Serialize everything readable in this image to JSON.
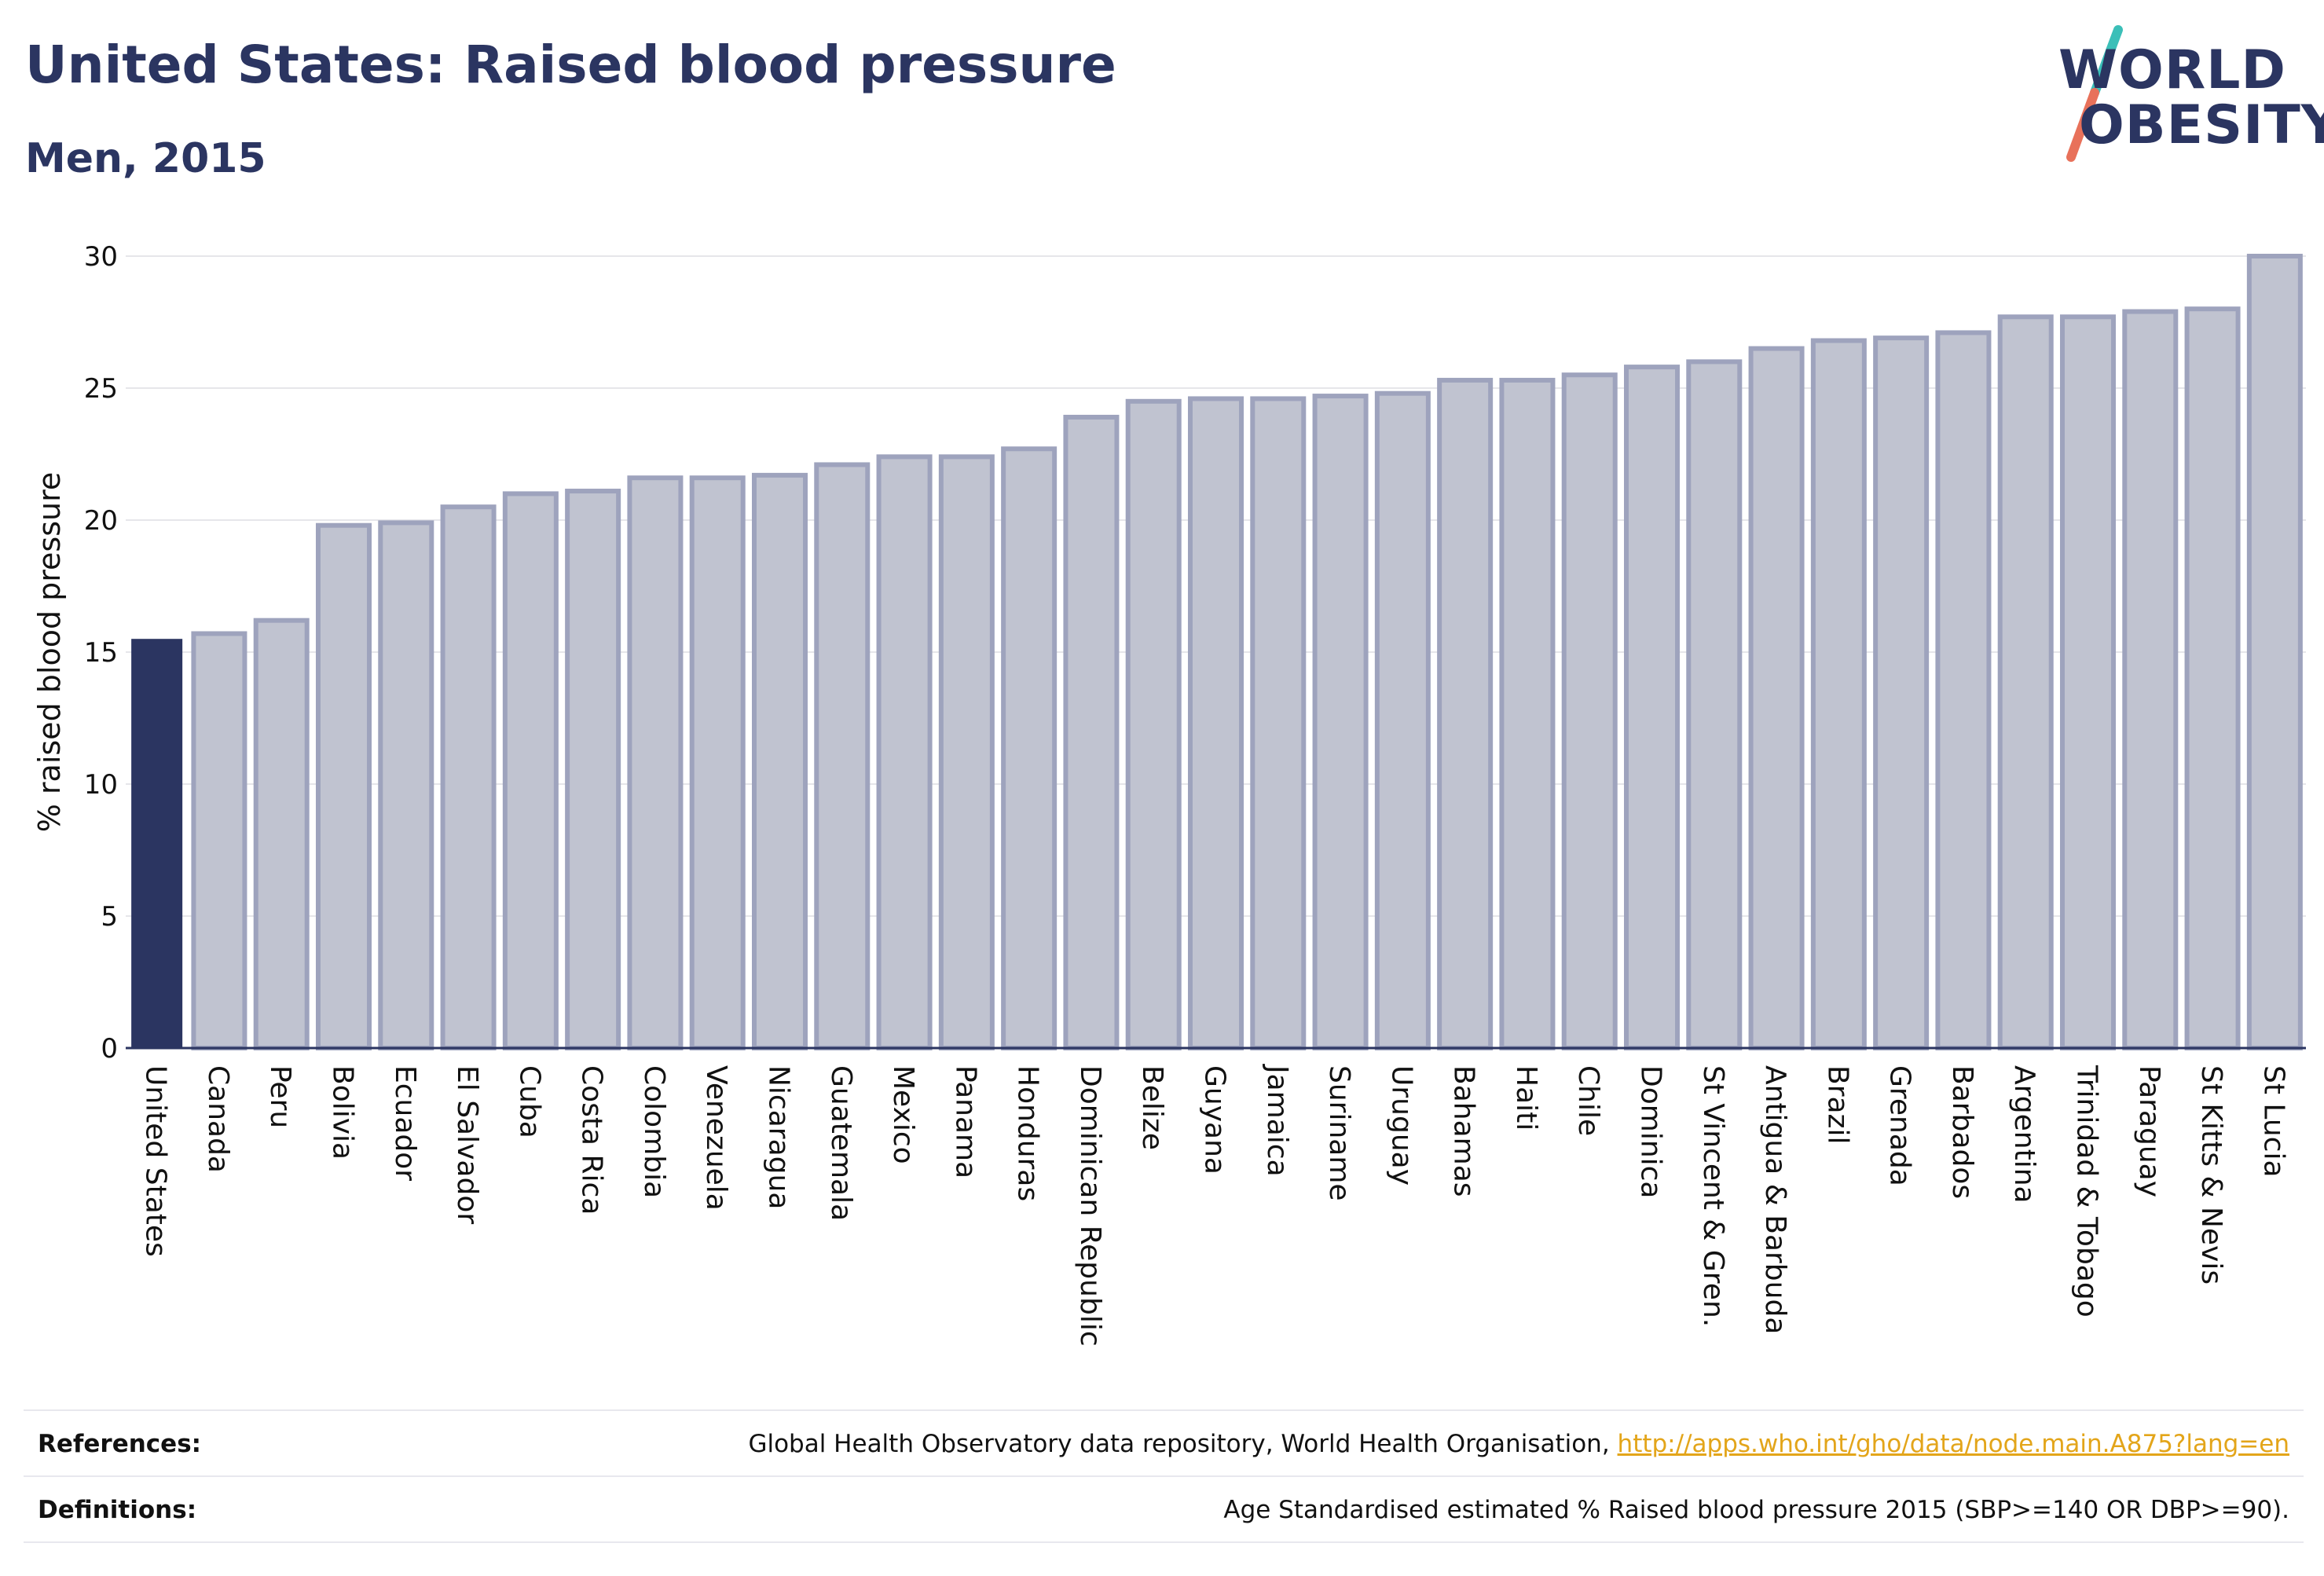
{
  "header": {
    "title": "United States: Raised blood pressure",
    "subtitle": "Men, 2015"
  },
  "logo": {
    "line1": "WORLD",
    "line2": "OBESITY",
    "colors": {
      "text": "#2b3561",
      "slash_top": "#3bbfb8",
      "slash_bottom": "#e8715a"
    }
  },
  "colors": {
    "highlight_bar": "#2b3561",
    "bar_fill": "#c0c3d0",
    "bar_stroke": "#9ea3bd",
    "grid": "#e6e6ea",
    "axis": "#2b3561",
    "link": "#e3a51a"
  },
  "chart_data": {
    "type": "bar",
    "ylabel": "% raised blood pressure",
    "ylim": [
      0,
      30
    ],
    "yticks": [
      0,
      5,
      10,
      15,
      20,
      25,
      30
    ],
    "grid": true,
    "highlight": "United States",
    "categories": [
      "United States",
      "Canada",
      "Peru",
      "Bolivia",
      "Ecuador",
      "El Salvador",
      "Cuba",
      "Costa Rica",
      "Colombia",
      "Venezuela",
      "Nicaragua",
      "Guatemala",
      "Mexico",
      "Panama",
      "Honduras",
      "Dominican Republic",
      "Belize",
      "Guyana",
      "Jamaica",
      "Suriname",
      "Uruguay",
      "Bahamas",
      "Haiti",
      "Chile",
      "Dominica",
      "St Vincent & Gren.",
      "Antigua & Barbuda",
      "Brazil",
      "Grenada",
      "Barbados",
      "Argentina",
      "Trinidad & Tobago",
      "Paraguay",
      "St Kitts & Nevis",
      "St Lucia"
    ],
    "values": [
      15.5,
      15.7,
      16.2,
      19.8,
      19.9,
      20.5,
      21.0,
      21.1,
      21.6,
      21.6,
      21.7,
      22.1,
      22.4,
      22.4,
      22.7,
      23.9,
      24.5,
      24.6,
      24.6,
      24.7,
      24.8,
      25.3,
      25.3,
      25.5,
      25.8,
      26.0,
      26.5,
      26.8,
      26.9,
      27.1,
      27.7,
      27.7,
      27.9,
      28.0,
      30.0
    ]
  },
  "footer": {
    "references_label": "References:",
    "references_text": "Global Health Observatory data repository, World Health Organisation, ",
    "references_link": "http://apps.who.int/gho/data/node.main.A875?lang=en",
    "definitions_label": "Definitions:",
    "definitions_text": "Age Standardised estimated % Raised blood pressure 2015 (SBP>=140 OR DBP>=90)."
  }
}
